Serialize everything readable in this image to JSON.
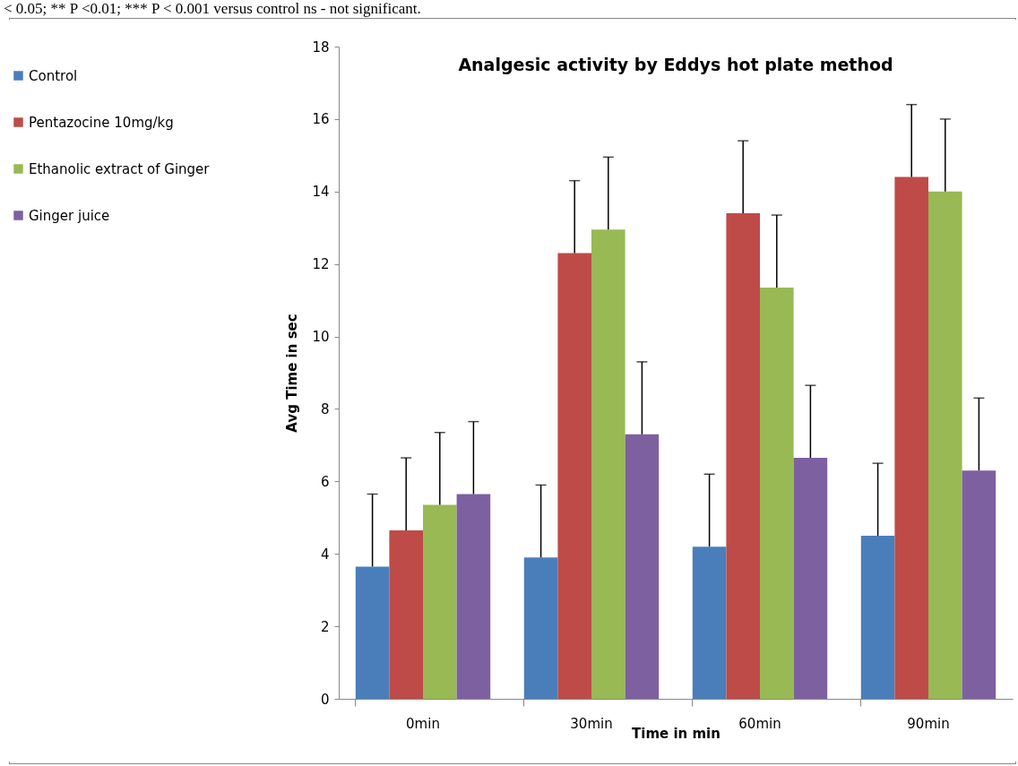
{
  "chart_data": {
    "type": "bar",
    "title": "Analgesic activity by Eddys hot plate method",
    "xlabel": "Time in min",
    "ylabel": "Avg Time in sec",
    "annotations": [
      "< 0.05;  ** P <0.01;  *** P < 0.001 versus control ns - not significant."
    ],
    "categories": [
      "0min",
      "30min",
      "60min",
      "90min"
    ],
    "series": [
      {
        "name": "Control",
        "color": "#4a7ebb",
        "values": [
          3.65,
          3.9,
          4.2,
          4.5
        ],
        "errors": [
          [
            3.65,
            5.65
          ],
          [
            3.9,
            5.9
          ],
          [
            4.2,
            6.2
          ],
          [
            4.5,
            6.5
          ]
        ]
      },
      {
        "name": "Pentazocine 10mg/kg",
        "color": "#be4b48",
        "values": [
          4.65,
          12.3,
          13.4,
          14.4
        ],
        "errors": [
          [
            4.65,
            6.65
          ],
          [
            12.3,
            14.3
          ],
          [
            13.4,
            15.4
          ],
          [
            14.4,
            16.4
          ]
        ]
      },
      {
        "name": "Ethanolic extract of Ginger",
        "color": "#98b954",
        "values": [
          5.35,
          12.95,
          11.35,
          14.0
        ],
        "errors": [
          [
            5.35,
            7.35
          ],
          [
            12.95,
            14.95
          ],
          [
            11.35,
            13.35
          ],
          [
            14.0,
            16.0
          ]
        ]
      },
      {
        "name": "Ginger juice",
        "color": "#7d60a0",
        "values": [
          5.65,
          7.3,
          6.65,
          6.3
        ],
        "errors": [
          [
            5.65,
            7.65
          ],
          [
            7.3,
            9.3
          ],
          [
            6.65,
            8.65
          ],
          [
            6.3,
            8.3
          ]
        ]
      }
    ],
    "ylim": [
      0,
      18
    ],
    "yticks": [
      0,
      2,
      4,
      6,
      8,
      10,
      12,
      14,
      16,
      18
    ],
    "grid": false,
    "legend": "top left"
  }
}
